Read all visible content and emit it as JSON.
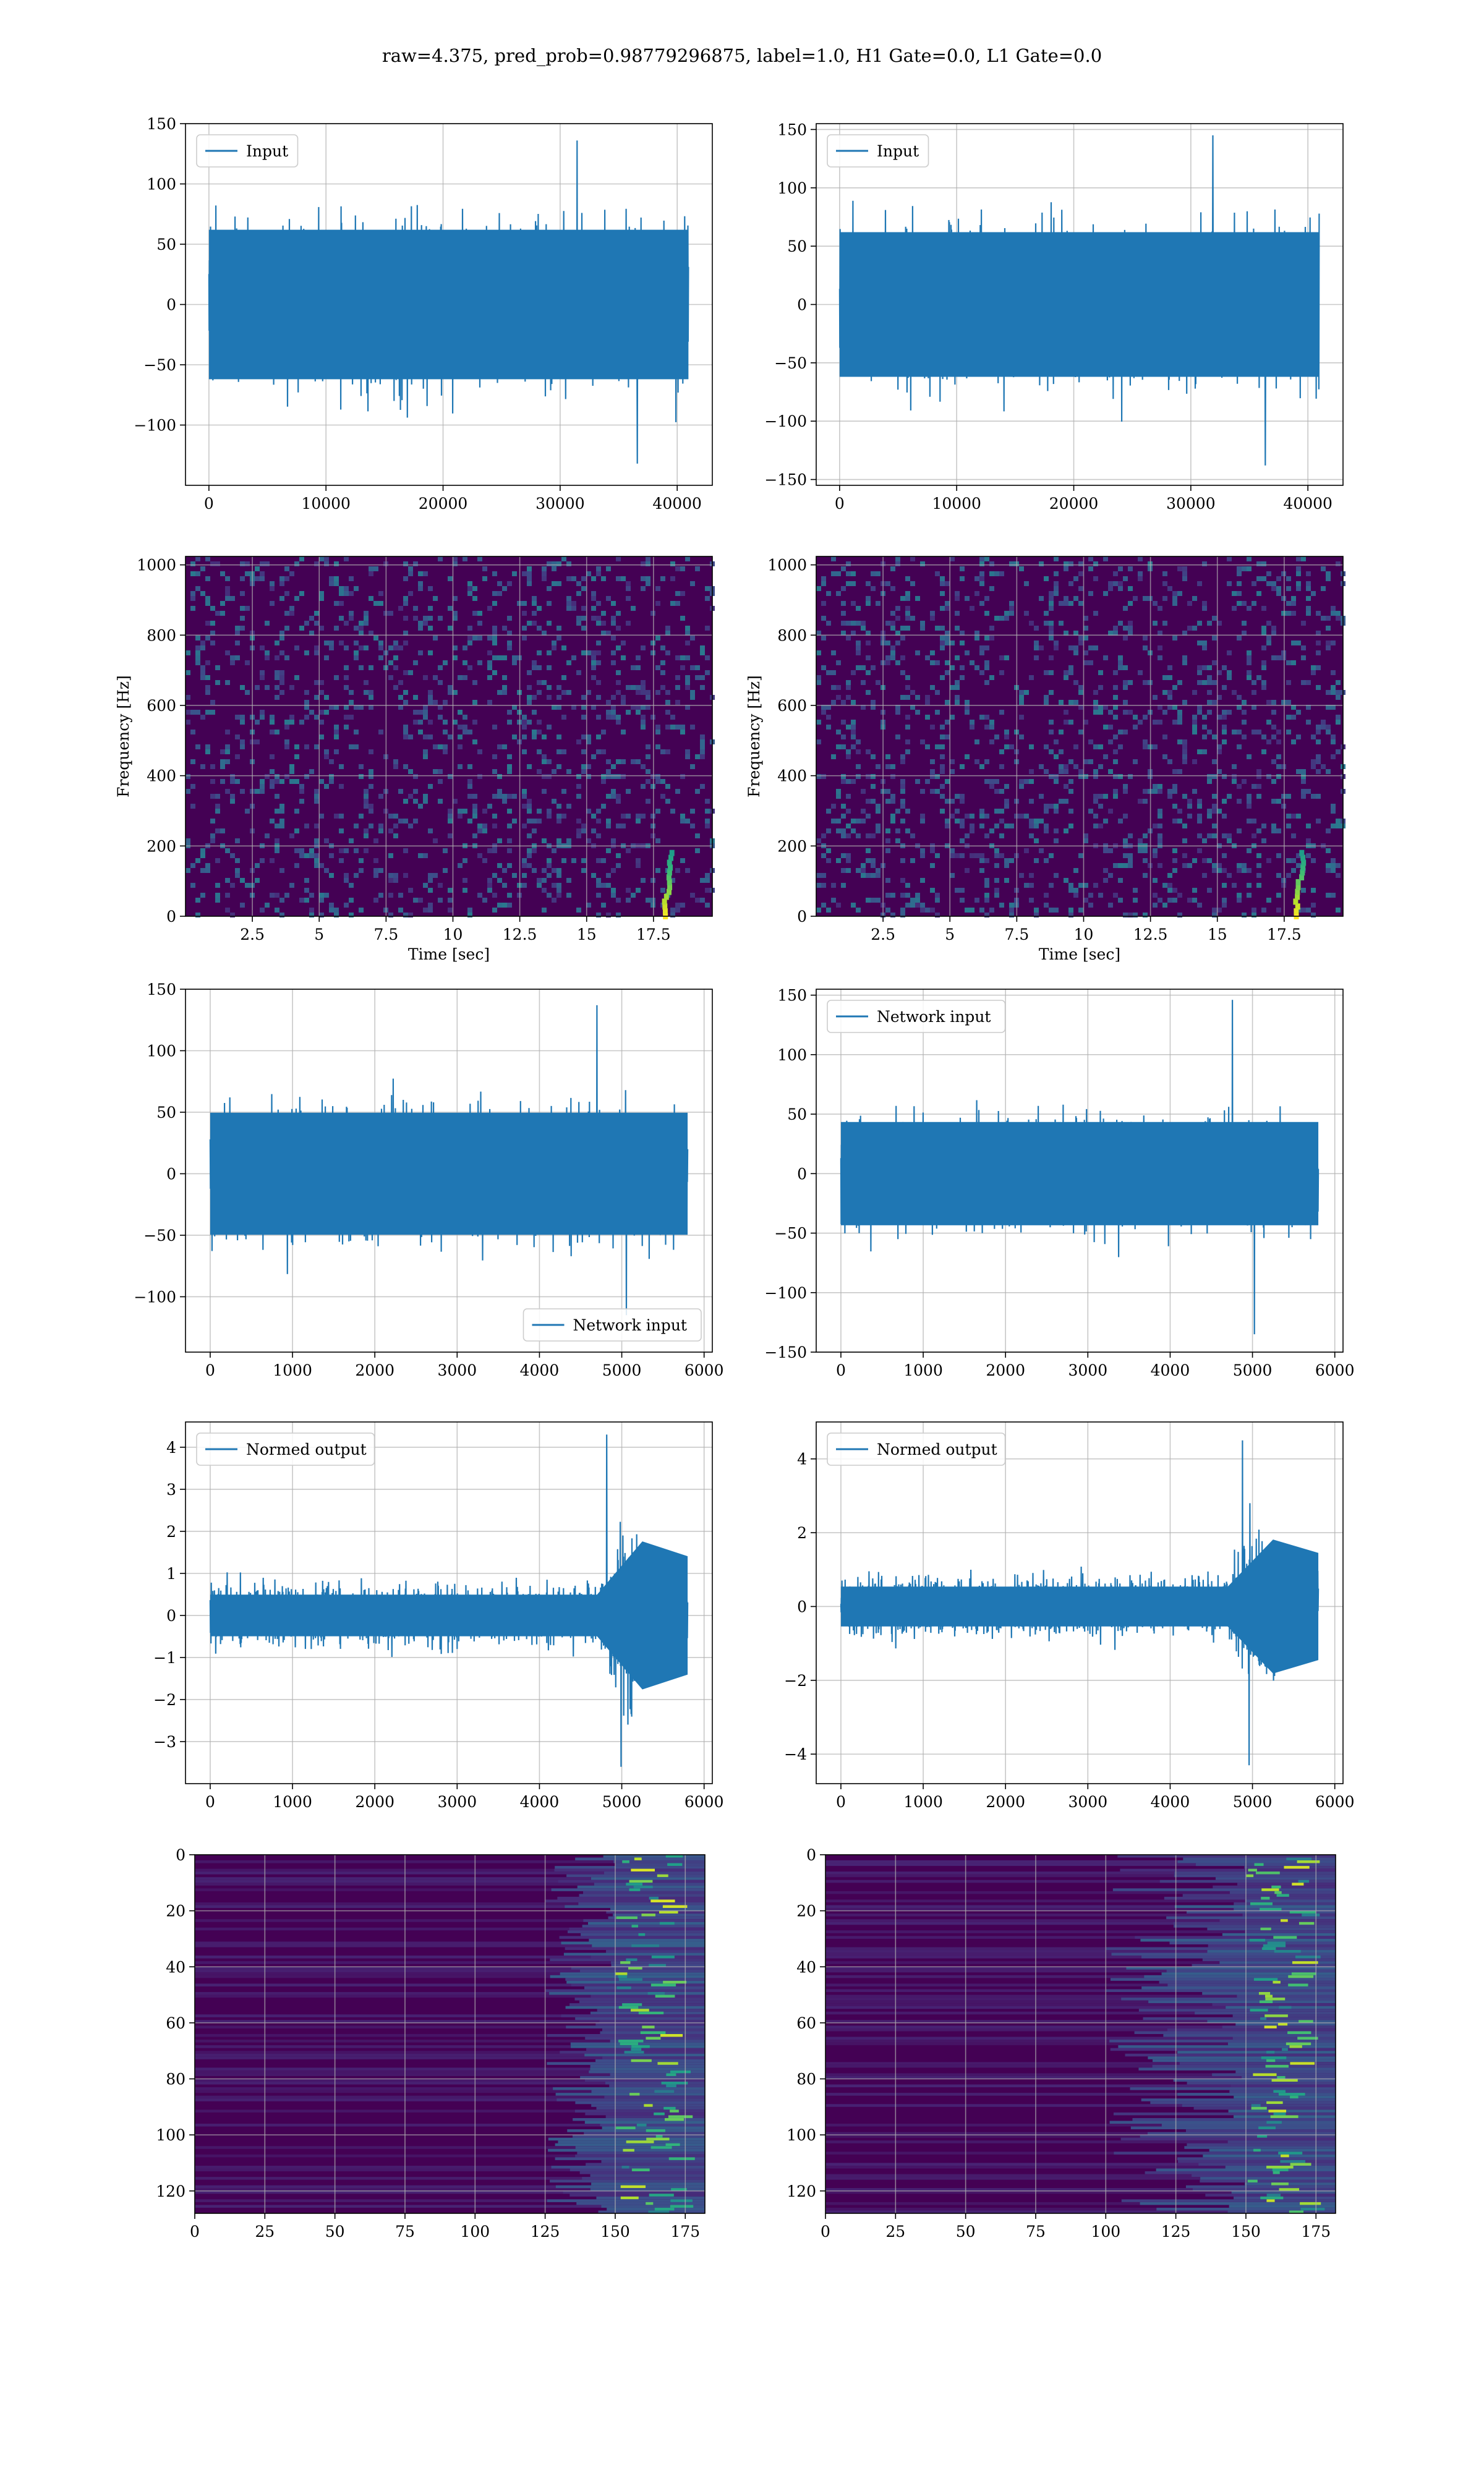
{
  "figure": {
    "suptitle": "raw=4.375, pred_prob=0.98779296875, label=1.0, H1 Gate=0.0, L1 Gate=0.0"
  },
  "colors": {
    "line": "#1f77b4",
    "viridis_dark": "#440154",
    "viridis_mid": "#21908d",
    "viridis_bright": "#fde725",
    "grid": "#b0b0b0"
  },
  "chart_data": [
    {
      "id": "p1",
      "type": "line",
      "ylim": [
        -150,
        150
      ],
      "xlim": [
        -2000,
        43000
      ],
      "xticks": [
        0,
        10000,
        20000,
        30000,
        40000
      ],
      "yticks": [
        -100,
        -50,
        0,
        50,
        100,
        150
      ],
      "x_range": [
        0,
        40960
      ],
      "amplitude": 100,
      "peak": [
        136,
        -132
      ],
      "legend": "Input",
      "legend_loc": "upper-left",
      "grid": true
    },
    {
      "id": "p2",
      "type": "line",
      "ylim": [
        -155,
        155
      ],
      "xlim": [
        -2000,
        43000
      ],
      "xticks": [
        0,
        10000,
        20000,
        30000,
        40000
      ],
      "yticks": [
        -150,
        -100,
        -50,
        0,
        50,
        100,
        150
      ],
      "x_range": [
        0,
        40960
      ],
      "amplitude": 100,
      "peak": [
        145,
        -138
      ],
      "legend": "Input",
      "legend_loc": "upper-left",
      "grid": true
    },
    {
      "id": "p3",
      "type": "heatmap",
      "xlim": [
        0,
        19.7
      ],
      "ylim": [
        0,
        1024
      ],
      "xticks": [
        2.5,
        5.0,
        7.5,
        10.0,
        12.5,
        15.0,
        17.5
      ],
      "yticks": [
        0,
        200,
        400,
        600,
        800,
        1000
      ],
      "xlabel": "Time [sec]",
      "ylabel": "Frequency [Hz]",
      "grid": true,
      "colormap": "viridis",
      "bright_track": {
        "x": [
          17.9,
          18.2
        ],
        "y": [
          0,
          180
        ]
      }
    },
    {
      "id": "p4",
      "type": "heatmap",
      "xlim": [
        0,
        19.7
      ],
      "ylim": [
        0,
        1024
      ],
      "xticks": [
        2.5,
        5.0,
        7.5,
        10.0,
        12.5,
        15.0,
        17.5
      ],
      "yticks": [
        0,
        200,
        400,
        600,
        800,
        1000
      ],
      "xlabel": "Time [sec]",
      "ylabel": "Frequency [Hz]",
      "grid": true,
      "colormap": "viridis",
      "bright_track": {
        "x": [
          17.9,
          18.2
        ],
        "y": [
          0,
          180
        ]
      }
    },
    {
      "id": "p5",
      "type": "line",
      "ylim": [
        -145,
        150
      ],
      "xlim": [
        -300,
        6100
      ],
      "xticks": [
        0,
        1000,
        2000,
        3000,
        4000,
        5000,
        6000
      ],
      "yticks": [
        -100,
        -50,
        0,
        50,
        100,
        150
      ],
      "x_range": [
        0,
        5800
      ],
      "amplitude": 80,
      "peak": [
        137,
        -115
      ],
      "legend": "Network input",
      "legend_loc": "lower-right",
      "grid": true
    },
    {
      "id": "p6",
      "type": "line",
      "ylim": [
        -150,
        155
      ],
      "xlim": [
        -300,
        6100
      ],
      "xticks": [
        0,
        1000,
        2000,
        3000,
        4000,
        5000,
        6000
      ],
      "yticks": [
        -150,
        -100,
        -50,
        0,
        50,
        100,
        150
      ],
      "x_range": [
        0,
        5800
      ],
      "amplitude": 70,
      "peak": [
        146,
        -135
      ],
      "legend": "Network input",
      "legend_loc": "upper-left",
      "grid": true
    },
    {
      "id": "p7",
      "type": "line",
      "ylim": [
        -4.0,
        4.6
      ],
      "xlim": [
        -300,
        6100
      ],
      "xticks": [
        0,
        1000,
        2000,
        3000,
        4000,
        5000,
        6000
      ],
      "yticks": [
        -3,
        -2,
        -1,
        0,
        1,
        2,
        3,
        4
      ],
      "x_range": [
        0,
        5800
      ],
      "amplitude": 1.1,
      "burst": {
        "from": 4700,
        "to": 5800,
        "amplitude": 3.2
      },
      "peak": [
        4.3,
        -3.6
      ],
      "legend": "Normed output",
      "legend_loc": "upper-left",
      "grid": true
    },
    {
      "id": "p8",
      "type": "line",
      "ylim": [
        -4.8,
        5.0
      ],
      "xlim": [
        -300,
        6100
      ],
      "xticks": [
        0,
        1000,
        2000,
        3000,
        4000,
        5000,
        6000
      ],
      "yticks": [
        -4,
        -2,
        0,
        2,
        4
      ],
      "x_range": [
        0,
        5800
      ],
      "amplitude": 1.2,
      "burst": {
        "from": 4700,
        "to": 5800,
        "amplitude": 3.3
      },
      "peak": [
        4.5,
        -4.3
      ],
      "legend": "Normed output",
      "legend_loc": "upper-left",
      "grid": true
    },
    {
      "id": "p9",
      "type": "heatmap",
      "xlim": [
        0,
        182
      ],
      "ylim": [
        128,
        0
      ],
      "xticks": [
        0,
        25,
        50,
        75,
        100,
        125,
        150,
        175
      ],
      "yticks": [
        0,
        20,
        40,
        60,
        80,
        100,
        120
      ],
      "grid": true,
      "colormap": "viridis",
      "active_columns": [
        125,
        182
      ],
      "hot_columns": [
        150,
        170
      ]
    },
    {
      "id": "p10",
      "type": "heatmap",
      "xlim": [
        0,
        182
      ],
      "ylim": [
        128,
        0
      ],
      "xticks": [
        0,
        25,
        50,
        75,
        100,
        125,
        150,
        175
      ],
      "yticks": [
        0,
        20,
        40,
        60,
        80,
        100,
        120
      ],
      "grid": true,
      "colormap": "viridis",
      "active_columns": [
        100,
        182
      ],
      "hot_columns": [
        150,
        170
      ]
    }
  ]
}
